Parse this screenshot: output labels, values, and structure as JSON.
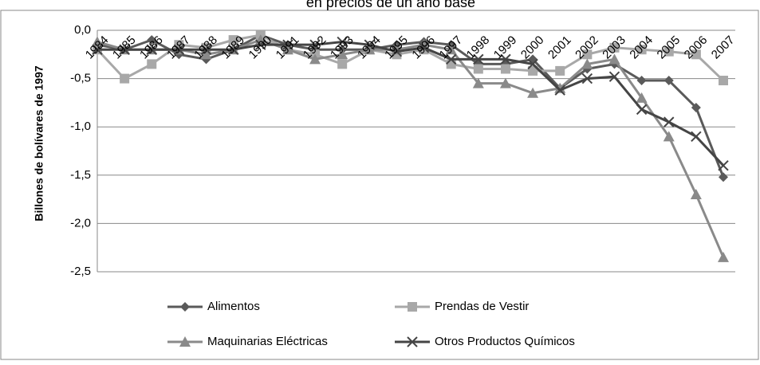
{
  "chart_data": {
    "type": "line",
    "title": "en precios de un año base",
    "y_label": "Billones de bolívares de 1997",
    "categories": [
      "1984",
      "1985",
      "1986",
      "1987",
      "1988",
      "1989",
      "1990",
      "1991",
      "1992",
      "1993",
      "1994",
      "1995",
      "1996",
      "1997",
      "1998",
      "1999",
      "2000",
      "2001",
      "2002",
      "2003",
      "2004",
      "2005",
      "2006",
      "2007"
    ],
    "series": [
      {
        "name": "Alimentos",
        "color": "#5a5a5a",
        "marker": "diamond",
        "values": [
          -0.15,
          -0.2,
          -0.1,
          -0.25,
          -0.3,
          -0.2,
          -0.05,
          -0.15,
          -0.2,
          -0.2,
          -0.2,
          -0.15,
          -0.12,
          -0.15,
          -0.35,
          -0.35,
          -0.3,
          -0.6,
          -0.4,
          -0.35,
          -0.52,
          -0.52,
          -0.8,
          -1.52
        ]
      },
      {
        "name": "Prendas de Vestir",
        "color": "#a8a8a8",
        "marker": "square",
        "values": [
          -0.2,
          -0.5,
          -0.35,
          -0.15,
          -0.18,
          -0.1,
          -0.05,
          -0.2,
          -0.25,
          -0.35,
          -0.2,
          -0.25,
          -0.2,
          -0.35,
          -0.4,
          -0.4,
          -0.42,
          -0.42,
          -0.25,
          -0.18,
          -0.2,
          -0.22,
          -0.25,
          -0.52
        ]
      },
      {
        "name": "Maquinarias Eléctricas",
        "color": "#8a8a8a",
        "marker": "triangle",
        "values": [
          -0.12,
          -0.2,
          -0.2,
          -0.2,
          -0.25,
          -0.2,
          -0.1,
          -0.2,
          -0.3,
          -0.25,
          -0.2,
          -0.2,
          -0.15,
          -0.2,
          -0.55,
          -0.55,
          -0.65,
          -0.6,
          -0.35,
          -0.3,
          -0.7,
          -1.1,
          -1.7,
          -2.35
        ]
      },
      {
        "name": "Otros Productos Químicos",
        "color": "#454545",
        "marker": "x",
        "values": [
          -0.2,
          -0.2,
          -0.2,
          -0.2,
          -0.2,
          -0.2,
          -0.15,
          -0.15,
          -0.15,
          -0.12,
          -0.15,
          -0.22,
          -0.18,
          -0.3,
          -0.3,
          -0.3,
          -0.35,
          -0.62,
          -0.5,
          -0.48,
          -0.82,
          -0.95,
          -1.1,
          -1.4
        ]
      }
    ],
    "ylim": [
      -2.5,
      0
    ],
    "yticks": [
      {
        "value": -2.5,
        "label": "-2,5"
      },
      {
        "value": -2,
        "label": "-2,0"
      },
      {
        "value": -1.5,
        "label": "-1,5"
      },
      {
        "value": -1,
        "label": "-1,0"
      },
      {
        "value": -0.5,
        "label": "-0,5"
      },
      {
        "value": 0,
        "label": "0,0"
      }
    ],
    "grid": true,
    "legend": "bottom"
  }
}
